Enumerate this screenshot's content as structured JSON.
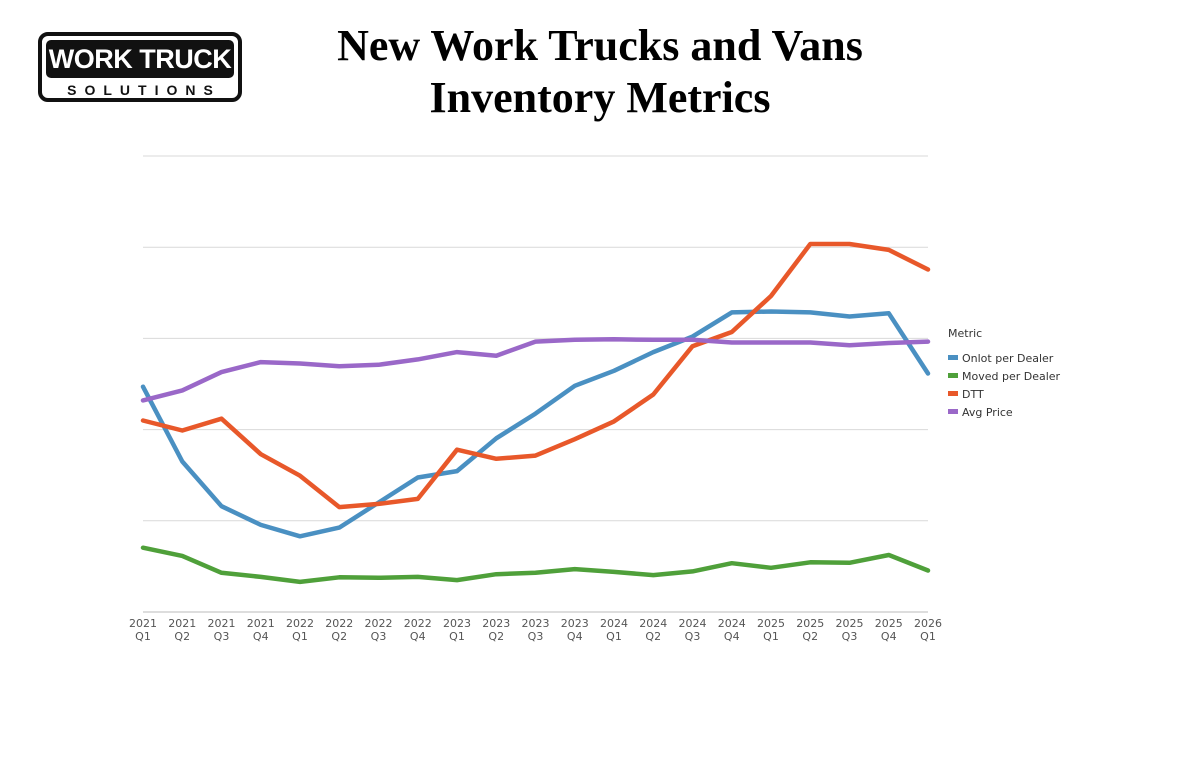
{
  "logo": {
    "line1": "WORK TRUCK",
    "line2": "SOLUTIONS"
  },
  "chart_data": {
    "type": "line",
    "title": "New Work Trucks and Vans Inventory Metrics",
    "title_lines": [
      "New Work Trucks and Vans",
      "Inventory Metrics"
    ],
    "xlabel": "",
    "ylabel": "",
    "categories": [
      [
        "2021",
        "Q1"
      ],
      [
        "2021",
        "Q2"
      ],
      [
        "2021",
        "Q3"
      ],
      [
        "2021",
        "Q4"
      ],
      [
        "2022",
        "Q1"
      ],
      [
        "2022",
        "Q2"
      ],
      [
        "2022",
        "Q3"
      ],
      [
        "2022",
        "Q4"
      ],
      [
        "2023",
        "Q1"
      ],
      [
        "2023",
        "Q2"
      ],
      [
        "2023",
        "Q3"
      ],
      [
        "2023",
        "Q4"
      ],
      [
        "2024",
        "Q1"
      ],
      [
        "2024",
        "Q2"
      ],
      [
        "2024",
        "Q3"
      ],
      [
        "2024",
        "Q4"
      ],
      [
        "2025",
        "Q1"
      ],
      [
        "2025",
        "Q2"
      ],
      [
        "2025",
        "Q3"
      ],
      [
        "2025",
        "Q4"
      ],
      [
        "2026",
        "Q1"
      ]
    ],
    "y_axis_labels_shown": false,
    "ylim": [
      0,
      100
    ],
    "grid": true,
    "legend": {
      "title": "Metric",
      "placement": "right"
    },
    "series": [
      {
        "name": "Onlot per Dealer",
        "color": "#4a90c2",
        "values": [
          49.4,
          33.0,
          23.2,
          19.1,
          16.6,
          18.5,
          24.0,
          29.5,
          30.9,
          38.1,
          43.5,
          49.6,
          52.9,
          57.0,
          60.4,
          65.7,
          65.9,
          65.7,
          64.8,
          65.5,
          52.3
        ]
      },
      {
        "name": "Moved per Dealer",
        "color": "#4fa03a",
        "values": [
          14.1,
          12.3,
          8.6,
          7.7,
          6.6,
          7.6,
          7.5,
          7.7,
          7.0,
          8.3,
          8.6,
          9.4,
          8.8,
          8.1,
          8.9,
          10.7,
          9.7,
          10.9,
          10.8,
          12.5,
          9.1
        ]
      },
      {
        "name": "DTT",
        "color": "#e8582a",
        "values": [
          42.0,
          39.8,
          42.4,
          34.6,
          29.9,
          23.0,
          23.7,
          24.8,
          35.6,
          33.6,
          34.3,
          37.9,
          41.8,
          47.7,
          58.3,
          61.4,
          69.3,
          80.7,
          80.7,
          79.4,
          75.1
        ]
      },
      {
        "name": "Avg Price",
        "color": "#9a68c8",
        "values": [
          46.4,
          48.6,
          52.6,
          54.8,
          54.5,
          53.9,
          54.2,
          55.4,
          57.0,
          56.2,
          59.3,
          59.7,
          59.8,
          59.7,
          59.7,
          59.1,
          59.1,
          59.1,
          58.5,
          59.0,
          59.3
        ]
      }
    ]
  }
}
